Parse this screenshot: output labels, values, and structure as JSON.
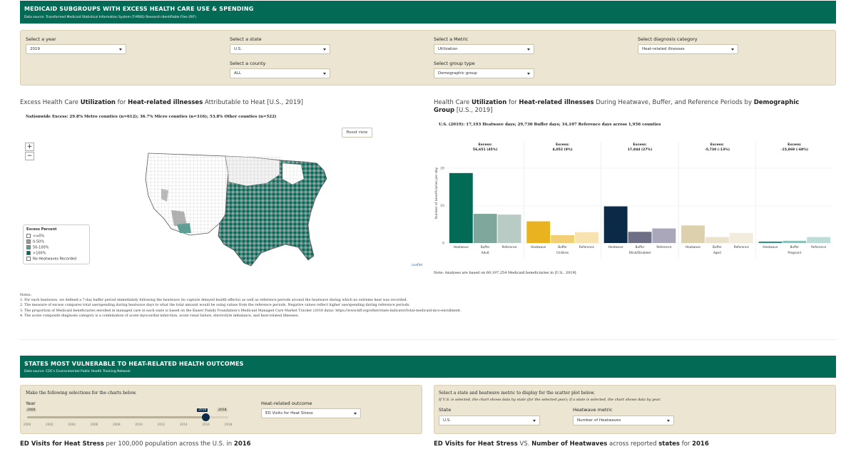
{
  "banner1": {
    "title": "MEDICAID SUBGROUPS WITH EXCESS HEALTH CARE USE & SPENDING",
    "source": "Data source: Transformed Medicaid Statistical Information System (T-MSIS) Research Identifiable Files (RIF)"
  },
  "controls": {
    "year": {
      "label": "Select a year",
      "value": "2019"
    },
    "state": {
      "label": "Select a state",
      "value": "U.S."
    },
    "county": {
      "label": "Select a county",
      "value": "ALL"
    },
    "metric": {
      "label": "Select a Metric",
      "value": "Utilization"
    },
    "group": {
      "label": "Select group type",
      "value": "Demographic group"
    },
    "diagnosis": {
      "label": "Select diagnosis category",
      "value": "Heat-related illnesses"
    }
  },
  "map_panel": {
    "title_a": "Excess Health Care ",
    "title_b": "Utilization",
    "title_c": " for ",
    "title_d": "Heat-related illnesses",
    "title_e": " Attributable to Heat [U.S., 2019]",
    "subtitle": "Nationwide Excess: 29.8% Metro counties (n=612); 36.7% Micro counties (n=316); 53.8% Other counties (n=522)",
    "reset": "Reset view",
    "zoom_in": "+",
    "zoom_out": "−",
    "attribution": "Leaflet",
    "legend": {
      "title": "Excess Percent",
      "items": [
        {
          "label": "<=0%",
          "color": "#ffffff"
        },
        {
          "label": "0-50%",
          "color": "#9e9e9e"
        },
        {
          "label": "50-100%",
          "color": "#5f9e95"
        },
        {
          "label": ">100%",
          "color": "#036a55"
        },
        {
          "label": "No Heatwaves Recorded",
          "color": "#ffffff"
        }
      ]
    }
  },
  "bar_panel": {
    "title_a": "Health Care ",
    "title_b": "Utilization",
    "title_c": " for ",
    "title_d": "Heat-related illnesses",
    "title_e": " During Heatwave, Buffer, and Reference Periods by ",
    "title_f": "Demographic",
    "title_g": "Group",
    "title_h": " [U.S., 2019]",
    "subtitle": "U.S. (2019): 17,193 Heatwave days; 29,730 Buffer days; 34,107 Reference days across 1,956 counties",
    "note": "Note: Analyses are based on 60,197,254 Medicaid beneficiaries in [U.S., 2019]"
  },
  "chart_data": {
    "type": "bar",
    "ylabel": "Number of beneficiaries per day",
    "ylim": [
      0,
      30
    ],
    "yticks": [
      0,
      10,
      20
    ],
    "period_labels": [
      "Heatwave",
      "Buffer",
      "Reference"
    ],
    "groups": [
      {
        "name": "Adult",
        "excess_label": "Excess:",
        "excess_value": "56,651 (45%)",
        "values": [
          18.7,
          7.8,
          7.6
        ],
        "colors": [
          "#036a55",
          "#7fa79c",
          "#b8cbc5"
        ]
      },
      {
        "name": "Children",
        "excess_label": "Excess:",
        "excess_value": "4,052 (9%)",
        "values": [
          5.8,
          2.1,
          2.9
        ],
        "colors": [
          "#e9b21f",
          "#f2cf74",
          "#f7e2b0"
        ]
      },
      {
        "name": "Blind/Disabled",
        "excess_label": "Excess:",
        "excess_value": "17,844 (27%)",
        "values": [
          9.8,
          3.0,
          3.9
        ],
        "colors": [
          "#0b2a48",
          "#6e6e86",
          "#a9a7b9"
        ]
      },
      {
        "name": "Aged",
        "excess_label": "Excess:",
        "excess_value": "-5,730 (-13%)",
        "values": [
          4.7,
          1.6,
          2.7
        ],
        "colors": [
          "#ddd0ad",
          "#ebe2cb",
          "#f2ecdd"
        ]
      },
      {
        "name": "Pregnant",
        "excess_label": "Excess:",
        "excess_value": "-15,869 (-69%)",
        "values": [
          0.4,
          0.6,
          1.6
        ],
        "colors": [
          "#2f8f84",
          "#8cc2ba",
          "#bcdcd7"
        ]
      }
    ]
  },
  "notes": {
    "head": "Notes:",
    "items": [
      "1. For each heatwave, we defined a 7-day buffer period immediately following the heatwave (to capture delayed health effects) as well as reference periods around the heatwave during which no extreme heat was recorded.",
      "2. The measure of excess compares total use/spending during heatwave days to what the total amount would be using values from the reference periods. Negative values reflect higher use/spending during reference periods.",
      "3. The proportion of Medicaid beneficiaries enrolled in managed care in each state is based on the Kaiser Family Foundation's Medicaid Managed Care Market Tracker (2018 data): https://www.kff.org/other/state-indicator/total-medicaid-mco-enrollment.",
      "4. The acute composite diagnosis category is a combination of acute myocardial infarction, acute renal failure, electrolyte imbalance, and heat-related illnesses."
    ]
  },
  "banner2": {
    "title": "STATES MOST VULNERABLE TO HEAT-RELATED HEALTH OUTCOMES",
    "source": "Data source: CDC's Environmental Public Health Tracking Network"
  },
  "lower_left": {
    "intro": "Make the following selections for the charts below.",
    "year_label": "Year",
    "slider_min": "2000",
    "slider_max": "2018",
    "slider_value": "2016",
    "slider_value_num": 2016,
    "slider_range": [
      2000,
      2018
    ],
    "slider_ticks": [
      "2000",
      "2002",
      "2004",
      "2006",
      "2008",
      "2010",
      "2012",
      "2014",
      "2016",
      "2018"
    ],
    "outcome_label": "Heat-related outcome",
    "outcome_value": "ED Visits for Heat Stress"
  },
  "lower_right": {
    "intro": "Select a state and heatwave metric to display for the scatter plot below.",
    "hint": "If U.S. is selected, the chart shows data by state (for the selected year); if a state is selected, the chart shows data by year.",
    "state_label": "State",
    "state_value": "U.S.",
    "metric_label": "Heatwave metric",
    "metric_value": "Number of Heatwaves"
  },
  "bottom_titles": {
    "left_a": "ED Visits for Heat Stress",
    "left_b": " per 100,000 population across the U.S. in ",
    "left_c": "2016",
    "right_a": "ED Visits for Heat Stress",
    "right_b": " VS. ",
    "right_c": "Number of Heatwaves",
    "right_d": " across reported ",
    "right_e": "states",
    "right_f": " for ",
    "right_g": "2016"
  }
}
